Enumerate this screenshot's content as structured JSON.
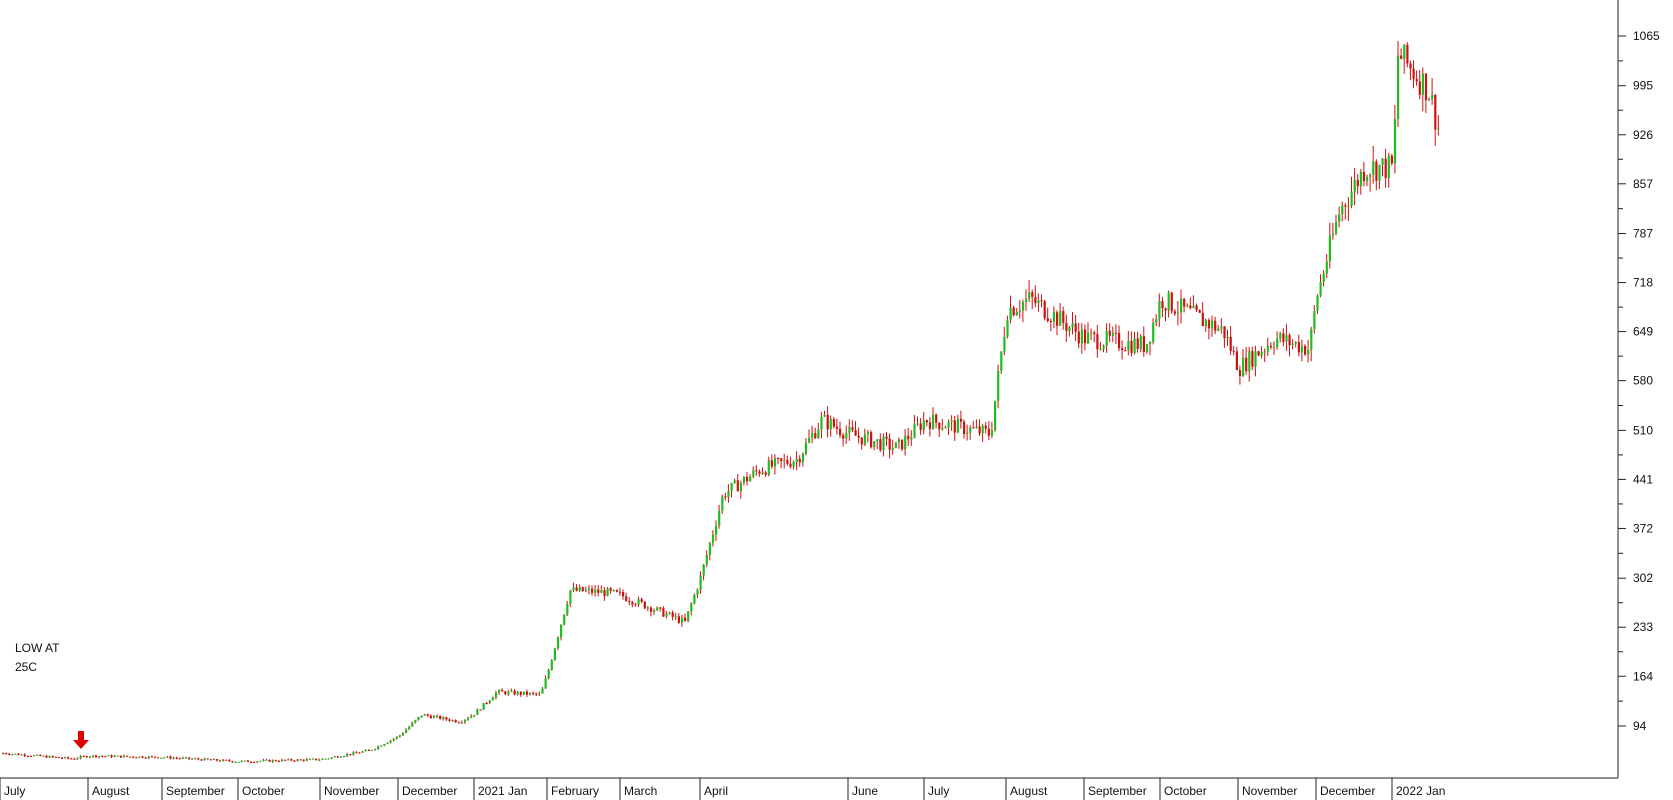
{
  "chart_data": {
    "type": "candlestick",
    "title": "",
    "xlabel": "",
    "ylabel": "",
    "y_ticks": [
      94,
      164,
      233,
      302,
      372,
      441,
      510,
      580,
      649,
      718,
      787,
      857,
      926,
      995,
      1065
    ],
    "ylim": [
      30,
      1115
    ],
    "x_tick_labels": [
      "July",
      "August",
      "September",
      "October",
      "November",
      "December",
      "2021 Jan",
      "February",
      "March",
      "April",
      "June",
      "July",
      "August",
      "September",
      "October",
      "November",
      "December",
      "2022 Jan"
    ],
    "up_color": "#22bb22",
    "down_color": "#cc1111",
    "grid": false,
    "annotation": {
      "text_line1": "LOW AT",
      "text_line2": "25C",
      "color": "#1f2fe0",
      "arrow": "down",
      "arrow_color": "#e00000"
    },
    "trend_closes": [
      {
        "date": "2020-07",
        "close": 56
      },
      {
        "date": "2020-07-25",
        "close": 48
      },
      {
        "date": "2020-08",
        "close": 52
      },
      {
        "date": "2020-09",
        "close": 50
      },
      {
        "date": "2020-10",
        "close": 44
      },
      {
        "date": "2020-11",
        "close": 47
      },
      {
        "date": "2020-11-20",
        "close": 60
      },
      {
        "date": "2020-12",
        "close": 80
      },
      {
        "date": "2020-12-10",
        "close": 110
      },
      {
        "date": "2020-12-25",
        "close": 100
      },
      {
        "date": "2021-01",
        "close": 112
      },
      {
        "date": "2021-01-10",
        "close": 142
      },
      {
        "date": "2021-01-28",
        "close": 138
      },
      {
        "date": "2021-02",
        "close": 170
      },
      {
        "date": "2021-02-10",
        "close": 285
      },
      {
        "date": "2021-02-25",
        "close": 282
      },
      {
        "date": "2021-03",
        "close": 278
      },
      {
        "date": "2021-03-25",
        "close": 240
      },
      {
        "date": "2021-04",
        "close": 305
      },
      {
        "date": "2021-04-10",
        "close": 420
      },
      {
        "date": "2021-04-25",
        "close": 455
      },
      {
        "date": "2021-05-10",
        "close": 470
      },
      {
        "date": "2021-05-20",
        "close": 525
      },
      {
        "date": "2021-06",
        "close": 505
      },
      {
        "date": "2021-06-20",
        "close": 485
      },
      {
        "date": "2021-07",
        "close": 525
      },
      {
        "date": "2021-07-25",
        "close": 505
      },
      {
        "date": "2021-08",
        "close": 680
      },
      {
        "date": "2021-08-10",
        "close": 695
      },
      {
        "date": "2021-09",
        "close": 640
      },
      {
        "date": "2021-09-25",
        "close": 630
      },
      {
        "date": "2021-10",
        "close": 695
      },
      {
        "date": "2021-10-25",
        "close": 650
      },
      {
        "date": "2021-11",
        "close": 598
      },
      {
        "date": "2021-11-15",
        "close": 640
      },
      {
        "date": "2021-11-28",
        "close": 625
      },
      {
        "date": "2021-12",
        "close": 700
      },
      {
        "date": "2021-12-10",
        "close": 820
      },
      {
        "date": "2021-12-20",
        "close": 880
      },
      {
        "date": "2021-12-31",
        "close": 880
      },
      {
        "date": "2022-01-03",
        "close": 1040
      },
      {
        "date": "2022-01-15",
        "close": 990
      },
      {
        "date": "2022-01-20",
        "close": 920
      }
    ]
  }
}
